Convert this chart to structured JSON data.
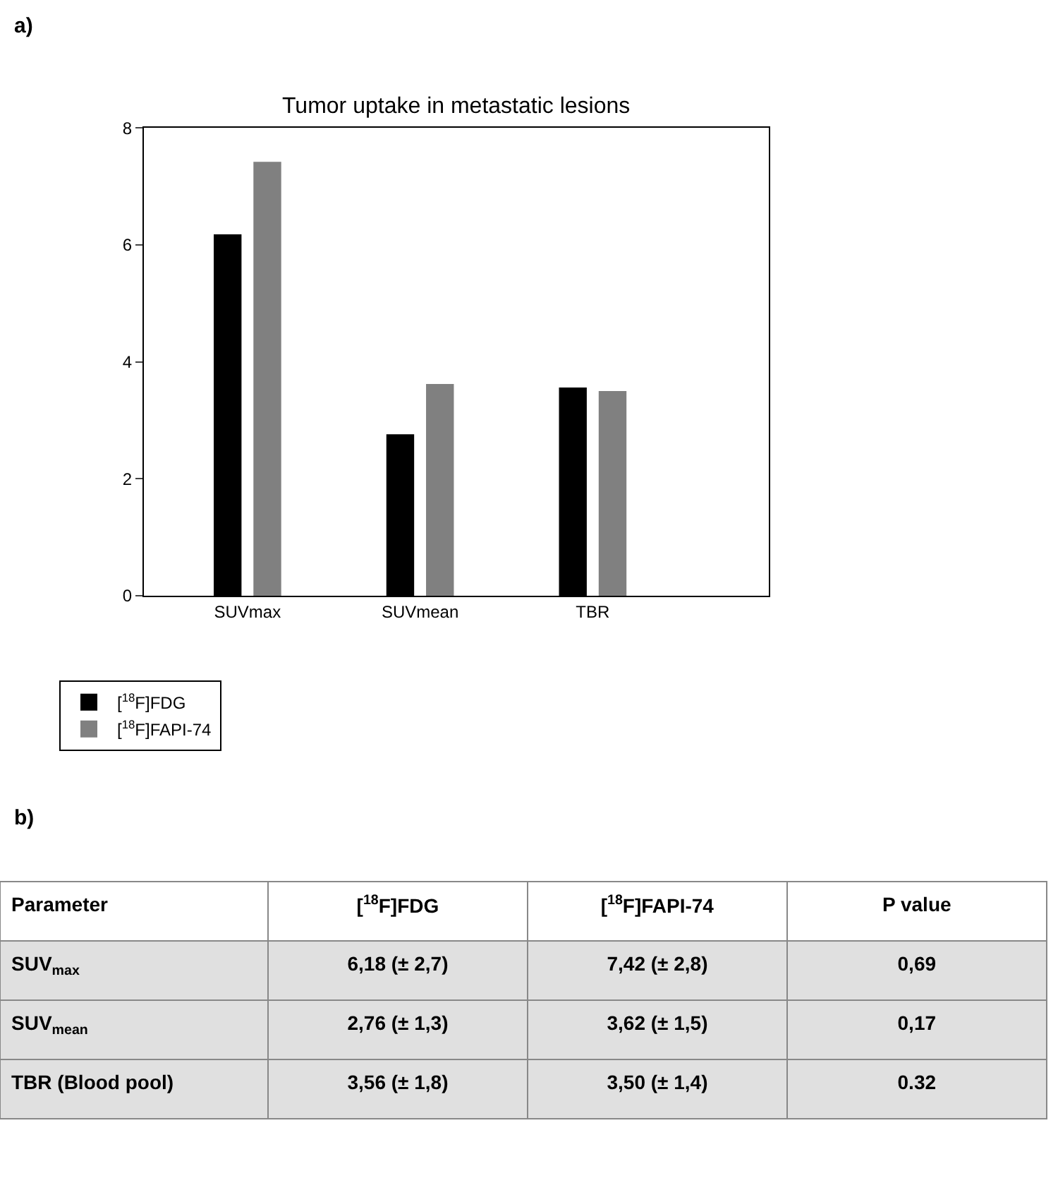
{
  "chart_data": [
    {
      "type": "bar",
      "title": "Tumor uptake in metastatic lesions",
      "annotations": [
        "a)"
      ],
      "categories": [
        "SUVmax",
        "SUVmean",
        "TBR"
      ],
      "series": [
        {
          "name": "[$^{18}$F]FDG",
          "color": "#000000",
          "values": [
            6.18,
            2.76,
            3.56
          ]
        },
        {
          "name": "[$^{18}$F]FAPI-74",
          "color": "#808080",
          "values": [
            7.42,
            3.62,
            3.5
          ]
        }
      ],
      "ylim": [
        0,
        8
      ],
      "yticks": [
        0,
        2,
        4,
        6,
        8
      ],
      "legend": "bottom left"
    },
    {
      "type": "other",
      "title": "b)",
      "ylabel": "Parameter",
      "categories": [
        "[$^{18}$F]FDG",
        "[$^{18}$F]FAPI-74",
        "P value"
      ],
      "y_categories": [
        "SUV$_{max}$",
        "SUV$_{mean}$",
        "TBR (Blood pool)"
      ],
      "cell_labels": [
        [
          "6,18 (± 2,7)",
          "7,42 (± 2,8)",
          "0,69"
        ],
        [
          "2,76 (± 1,3)",
          "3,62 (± 1,5)",
          "0,17"
        ],
        [
          "3,56 (± 1,8)",
          "3,50 (± 1,4)",
          "0.32"
        ]
      ]
    }
  ]
}
